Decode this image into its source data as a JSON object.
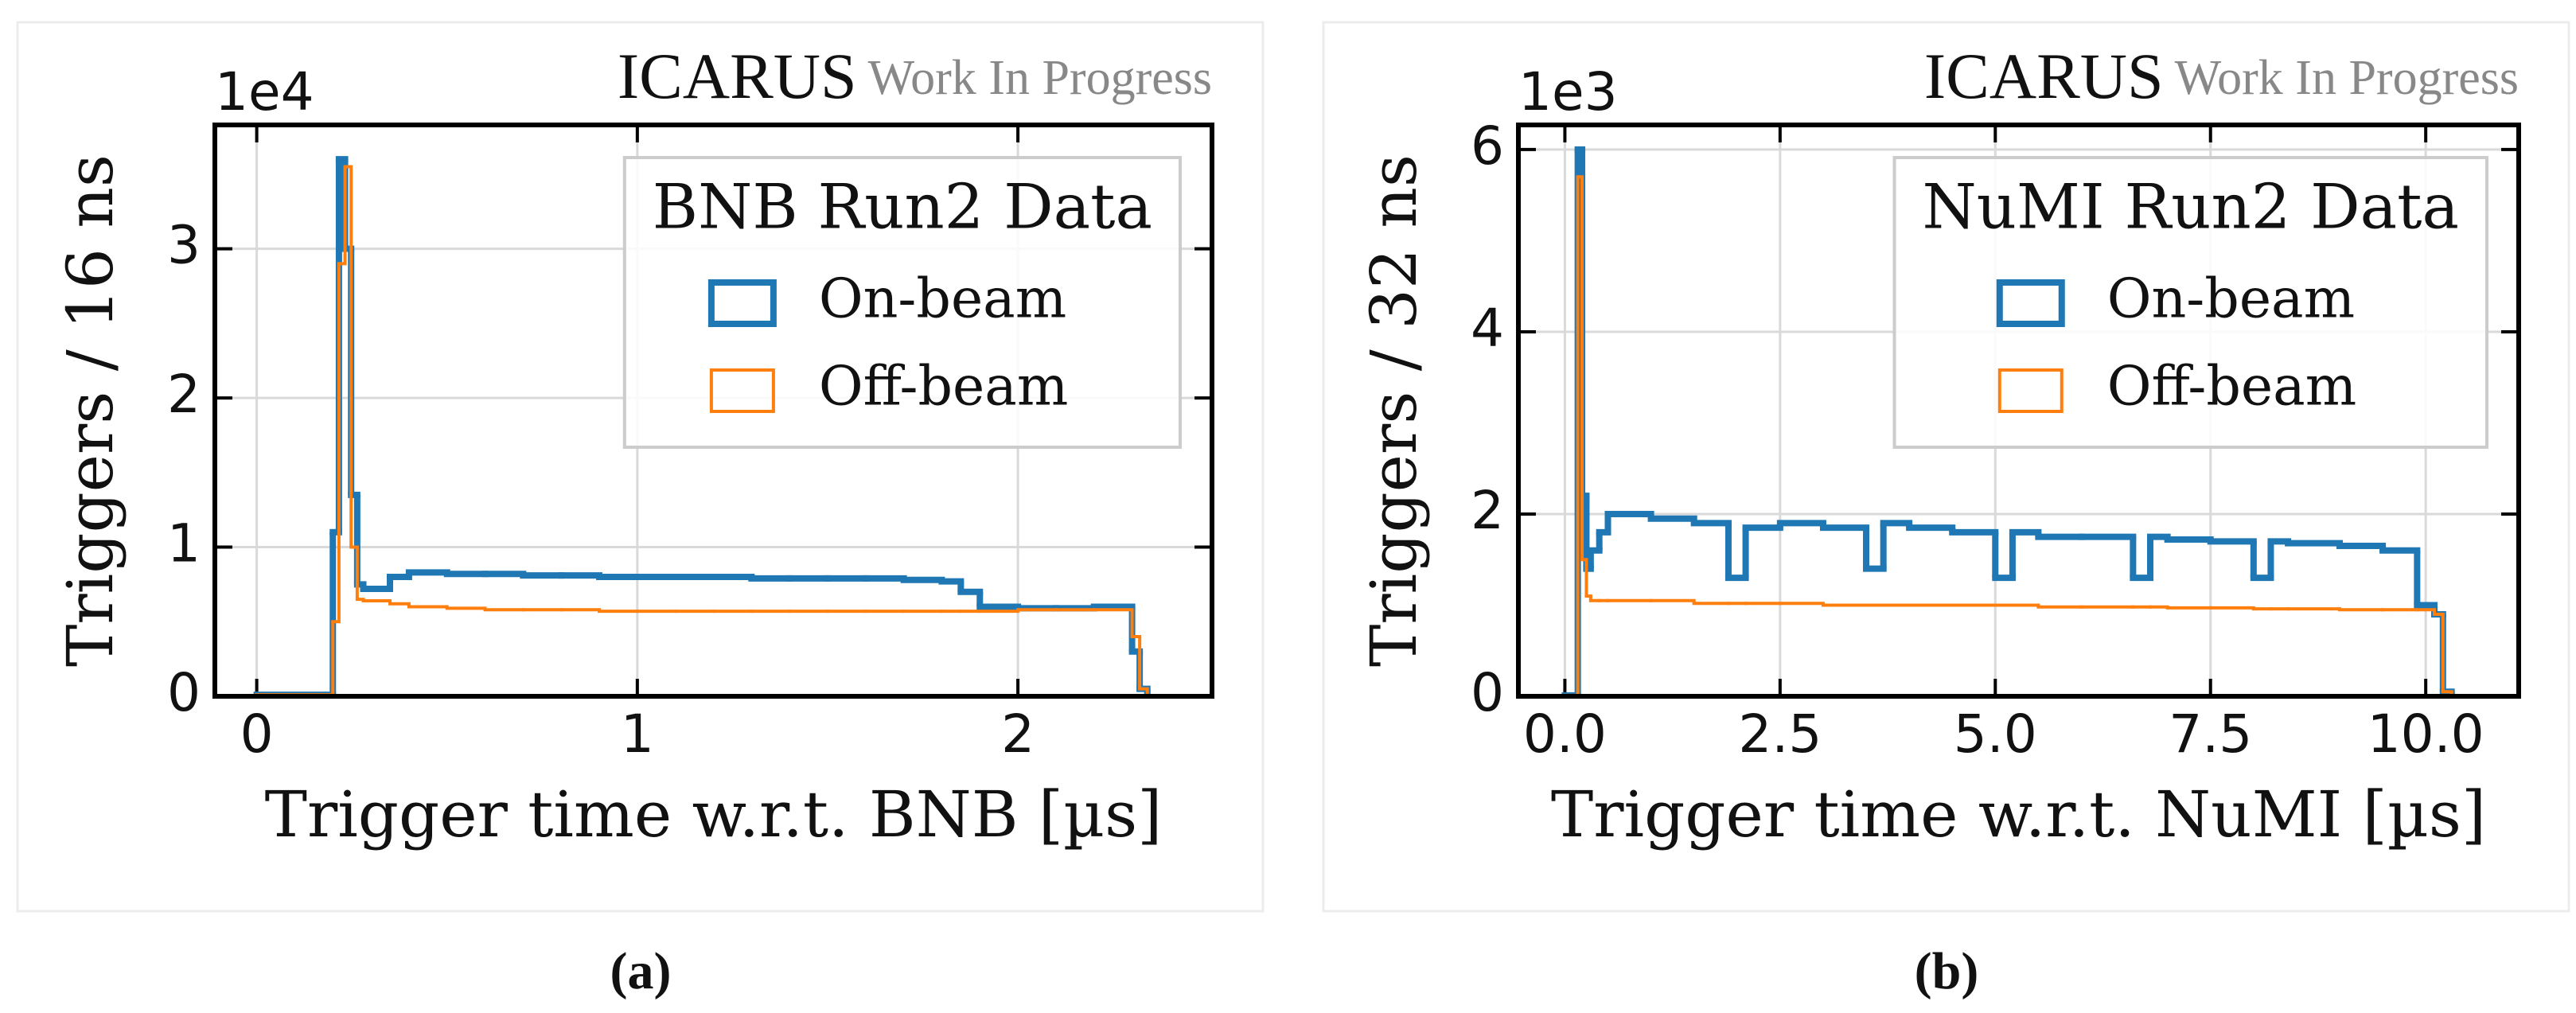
{
  "chart_data": [
    {
      "type": "histogram",
      "caption": "(a)",
      "experiment_label": "ICARUS",
      "status_label": "Work In Progress",
      "y_offset_label": "1e4",
      "xlabel": "Trigger time w.r.t. BNB  [µs]",
      "ylabel": "Triggers / 16 ns",
      "legend_title": "BNB Run2 Data",
      "legend_loc": "upper right",
      "grid": true,
      "xlim": [
        -0.11,
        2.51
      ],
      "ylim": [
        0,
        3.83
      ],
      "xticks": [
        0,
        1,
        2
      ],
      "yticks": [
        0,
        1,
        2,
        3
      ],
      "bins": [
        0,
        0.2,
        0.216,
        0.232,
        0.248,
        0.264,
        0.28,
        0.35,
        0.4,
        0.5,
        0.6,
        0.7,
        0.8,
        0.9,
        1.0,
        1.1,
        1.2,
        1.3,
        1.4,
        1.5,
        1.6,
        1.7,
        1.8,
        1.85,
        1.9,
        2.0,
        2.1,
        2.2,
        2.3,
        2.32,
        2.34
      ],
      "series": [
        {
          "name": "On-beam",
          "color": "#1f77b4",
          "linewidth": 8,
          "values": [
            0.01,
            1.1,
            3.6,
            3.0,
            1.35,
            0.75,
            0.72,
            0.8,
            0.83,
            0.82,
            0.82,
            0.81,
            0.81,
            0.8,
            0.8,
            0.8,
            0.8,
            0.79,
            0.79,
            0.79,
            0.79,
            0.78,
            0.77,
            0.7,
            0.6,
            0.59,
            0.59,
            0.6,
            0.3,
            0.05
          ]
        },
        {
          "name": "Off-beam",
          "color": "#ff7f0e",
          "linewidth": 4,
          "values": [
            0.01,
            0.5,
            2.9,
            3.55,
            1.0,
            0.65,
            0.64,
            0.62,
            0.6,
            0.59,
            0.58,
            0.58,
            0.58,
            0.57,
            0.57,
            0.57,
            0.57,
            0.57,
            0.57,
            0.57,
            0.57,
            0.57,
            0.57,
            0.57,
            0.57,
            0.58,
            0.58,
            0.58,
            0.4,
            0.05
          ]
        }
      ]
    },
    {
      "type": "histogram",
      "caption": "(b)",
      "experiment_label": "ICARUS",
      "status_label": "Work In Progress",
      "y_offset_label": "1e3",
      "xlabel": "Trigger time w.r.t. NuMI  [µs]",
      "ylabel": "Triggers / 32 ns",
      "legend_title": "NuMI Run2 Data",
      "legend_loc": "upper right",
      "grid": true,
      "xlim": [
        -0.54,
        11.08
      ],
      "ylim": [
        0,
        6.27
      ],
      "xticks": [
        {
          "value": 0,
          "label": "0.0"
        },
        2.5,
        {
          "value": 5,
          "label": "5.0"
        },
        7.5,
        {
          "value": 10,
          "label": "10.0"
        }
      ],
      "yticks": [
        0,
        2,
        4,
        6
      ],
      "bins": [
        0,
        0.15,
        0.2,
        0.25,
        0.3,
        0.4,
        0.5,
        1.0,
        1.5,
        1.9,
        2.1,
        2.5,
        3.0,
        3.5,
        3.7,
        4.0,
        4.5,
        5.0,
        5.2,
        5.5,
        6.0,
        6.6,
        6.8,
        7.0,
        7.5,
        8.0,
        8.2,
        8.4,
        9.0,
        9.5,
        9.9,
        10.1,
        10.2,
        10.3
      ],
      "series": [
        {
          "name": "On-beam",
          "color": "#1f77b4",
          "linewidth": 8,
          "values": [
            0.01,
            6.0,
            2.2,
            1.4,
            1.6,
            1.8,
            2.0,
            1.95,
            1.9,
            1.3,
            1.85,
            1.9,
            1.85,
            1.4,
            1.9,
            1.85,
            1.8,
            1.3,
            1.8,
            1.75,
            1.75,
            1.3,
            1.75,
            1.72,
            1.7,
            1.3,
            1.7,
            1.68,
            1.65,
            1.6,
            1.0,
            0.9,
            0.05
          ]
        },
        {
          "name": "Off-beam",
          "color": "#ff7f0e",
          "linewidth": 4,
          "values": [
            0.01,
            5.7,
            1.5,
            1.1,
            1.05,
            1.05,
            1.05,
            1.05,
            1.02,
            1.02,
            1.02,
            1.02,
            1.0,
            1.0,
            1.0,
            1.0,
            1.0,
            1.0,
            1.0,
            0.98,
            0.98,
            0.98,
            0.98,
            0.97,
            0.97,
            0.96,
            0.96,
            0.96,
            0.95,
            0.95,
            0.95,
            0.9,
            0.05
          ]
        }
      ]
    }
  ]
}
